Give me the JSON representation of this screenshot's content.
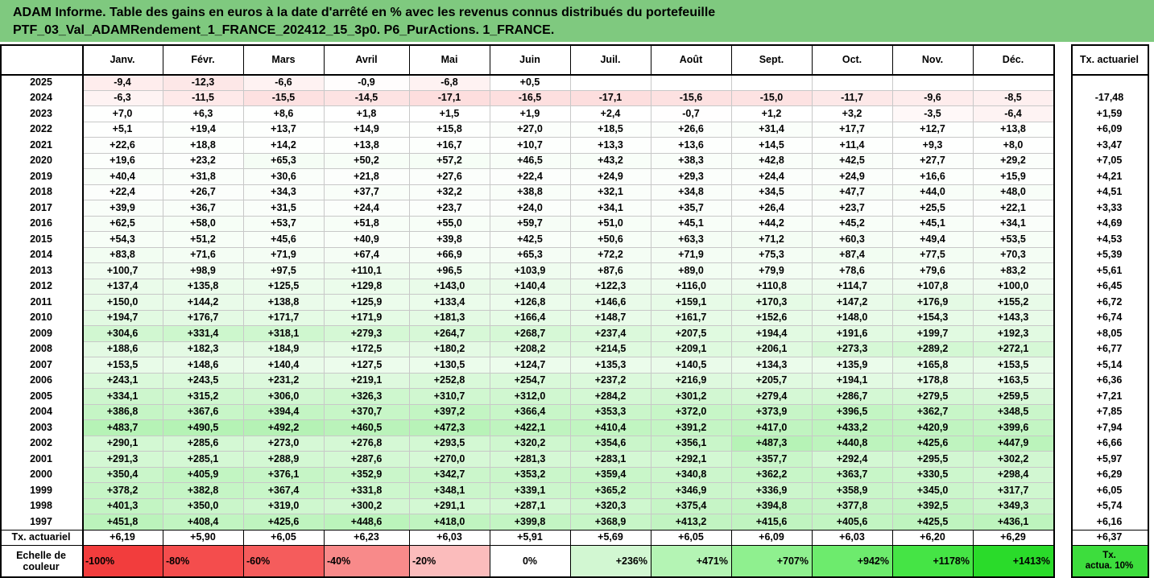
{
  "title": {
    "line1": "ADAM Informe. Table des gains en euros à la date d'arrêté en % avec les revenus connus distribués du portefeuille",
    "line2": "PTF_03_Val_ADAMRendement_1_FRANCE_202412_15_3p0. P6_PurActions. 1_FRANCE."
  },
  "months": [
    "Janv.",
    "Févr.",
    "Mars",
    "Avril",
    "Mai",
    "Juin",
    "Juil.",
    "Août",
    "Sept.",
    "Oct.",
    "Nov.",
    "Déc."
  ],
  "actuarial_header": "Tx. actuariel",
  "rows": [
    {
      "year": "2025",
      "values": [
        "-9,4",
        "-12,3",
        "-6,6",
        "-0,9",
        "-6,8",
        "+0,5",
        "",
        "",
        "",
        "",
        "",
        ""
      ],
      "rate": ""
    },
    {
      "year": "2024",
      "values": [
        "-6,3",
        "-11,5",
        "-15,5",
        "-14,5",
        "-17,1",
        "-16,5",
        "-17,1",
        "-15,6",
        "-15,0",
        "-11,7",
        "-9,6",
        "-8,5"
      ],
      "rate": "-17,48"
    },
    {
      "year": "2023",
      "values": [
        "+7,0",
        "+6,3",
        "+8,6",
        "+1,8",
        "+1,5",
        "+1,9",
        "+2,4",
        "-0,7",
        "+1,2",
        "+3,2",
        "-3,5",
        "-6,4"
      ],
      "rate": "+1,59"
    },
    {
      "year": "2022",
      "values": [
        "+5,1",
        "+19,4",
        "+13,7",
        "+14,9",
        "+15,8",
        "+27,0",
        "+18,5",
        "+26,6",
        "+31,4",
        "+17,7",
        "+12,7",
        "+13,8"
      ],
      "rate": "+6,09"
    },
    {
      "year": "2021",
      "values": [
        "+22,6",
        "+18,8",
        "+14,2",
        "+13,8",
        "+16,7",
        "+10,7",
        "+13,3",
        "+13,6",
        "+14,5",
        "+11,4",
        "+9,3",
        "+8,0"
      ],
      "rate": "+3,47"
    },
    {
      "year": "2020",
      "values": [
        "+19,6",
        "+23,2",
        "+65,3",
        "+50,2",
        "+57,2",
        "+46,5",
        "+43,2",
        "+38,3",
        "+42,8",
        "+42,5",
        "+27,7",
        "+29,2"
      ],
      "rate": "+7,05"
    },
    {
      "year": "2019",
      "values": [
        "+40,4",
        "+31,8",
        "+30,6",
        "+21,8",
        "+27,6",
        "+22,4",
        "+24,9",
        "+29,3",
        "+24,4",
        "+24,9",
        "+16,6",
        "+15,9"
      ],
      "rate": "+4,21"
    },
    {
      "year": "2018",
      "values": [
        "+22,4",
        "+26,7",
        "+34,3",
        "+37,7",
        "+32,2",
        "+38,8",
        "+32,1",
        "+34,8",
        "+34,5",
        "+47,7",
        "+44,0",
        "+48,0"
      ],
      "rate": "+4,51"
    },
    {
      "year": "2017",
      "values": [
        "+39,9",
        "+36,7",
        "+31,5",
        "+24,4",
        "+23,7",
        "+24,0",
        "+34,1",
        "+35,7",
        "+26,4",
        "+23,7",
        "+25,5",
        "+22,1"
      ],
      "rate": "+3,33"
    },
    {
      "year": "2016",
      "values": [
        "+62,5",
        "+58,0",
        "+53,7",
        "+51,8",
        "+55,0",
        "+59,7",
        "+51,0",
        "+45,1",
        "+44,2",
        "+45,2",
        "+45,1",
        "+34,1"
      ],
      "rate": "+4,69"
    },
    {
      "year": "2015",
      "values": [
        "+54,3",
        "+51,2",
        "+45,6",
        "+40,9",
        "+39,8",
        "+42,5",
        "+50,6",
        "+63,3",
        "+71,2",
        "+60,3",
        "+49,4",
        "+53,5"
      ],
      "rate": "+4,53"
    },
    {
      "year": "2014",
      "values": [
        "+83,8",
        "+71,6",
        "+71,9",
        "+67,4",
        "+66,9",
        "+65,3",
        "+72,2",
        "+71,9",
        "+75,3",
        "+87,4",
        "+77,5",
        "+70,3"
      ],
      "rate": "+5,39"
    },
    {
      "year": "2013",
      "values": [
        "+100,7",
        "+98,9",
        "+97,5",
        "+110,1",
        "+96,5",
        "+103,9",
        "+87,6",
        "+89,0",
        "+79,9",
        "+78,6",
        "+79,6",
        "+83,2"
      ],
      "rate": "+5,61"
    },
    {
      "year": "2012",
      "values": [
        "+137,4",
        "+135,8",
        "+125,5",
        "+129,8",
        "+143,0",
        "+140,4",
        "+122,3",
        "+116,0",
        "+110,8",
        "+114,7",
        "+107,8",
        "+100,0"
      ],
      "rate": "+6,45"
    },
    {
      "year": "2011",
      "values": [
        "+150,0",
        "+144,2",
        "+138,8",
        "+125,9",
        "+133,4",
        "+126,8",
        "+146,6",
        "+159,1",
        "+170,3",
        "+147,2",
        "+176,9",
        "+155,2"
      ],
      "rate": "+6,72"
    },
    {
      "year": "2010",
      "values": [
        "+194,7",
        "+176,7",
        "+171,7",
        "+171,9",
        "+181,3",
        "+166,4",
        "+148,7",
        "+161,7",
        "+152,6",
        "+148,0",
        "+154,3",
        "+143,3"
      ],
      "rate": "+6,74"
    },
    {
      "year": "2009",
      "values": [
        "+304,6",
        "+331,4",
        "+318,1",
        "+279,3",
        "+264,7",
        "+268,7",
        "+237,4",
        "+207,5",
        "+194,4",
        "+191,6",
        "+199,7",
        "+192,3"
      ],
      "rate": "+8,05"
    },
    {
      "year": "2008",
      "values": [
        "+188,6",
        "+182,3",
        "+184,9",
        "+172,5",
        "+180,2",
        "+208,2",
        "+214,5",
        "+209,1",
        "+206,1",
        "+273,3",
        "+289,2",
        "+272,1"
      ],
      "rate": "+6,77"
    },
    {
      "year": "2007",
      "values": [
        "+153,5",
        "+148,6",
        "+140,4",
        "+127,5",
        "+130,5",
        "+124,7",
        "+135,3",
        "+140,5",
        "+134,3",
        "+135,9",
        "+165,8",
        "+153,5"
      ],
      "rate": "+5,14"
    },
    {
      "year": "2006",
      "values": [
        "+243,1",
        "+243,5",
        "+231,2",
        "+219,1",
        "+252,8",
        "+254,7",
        "+237,2",
        "+216,9",
        "+205,7",
        "+194,1",
        "+178,8",
        "+163,5"
      ],
      "rate": "+6,36"
    },
    {
      "year": "2005",
      "values": [
        "+334,1",
        "+315,2",
        "+306,0",
        "+326,3",
        "+310,7",
        "+312,0",
        "+284,2",
        "+301,2",
        "+279,4",
        "+286,7",
        "+279,5",
        "+259,5"
      ],
      "rate": "+7,21"
    },
    {
      "year": "2004",
      "values": [
        "+386,8",
        "+367,6",
        "+394,4",
        "+370,7",
        "+397,2",
        "+366,4",
        "+353,3",
        "+372,0",
        "+373,9",
        "+396,5",
        "+362,7",
        "+348,5"
      ],
      "rate": "+7,85"
    },
    {
      "year": "2003",
      "values": [
        "+483,7",
        "+490,5",
        "+492,2",
        "+460,5",
        "+472,3",
        "+422,1",
        "+410,4",
        "+391,2",
        "+417,0",
        "+433,2",
        "+420,9",
        "+399,6"
      ],
      "rate": "+7,94"
    },
    {
      "year": "2002",
      "values": [
        "+290,1",
        "+285,6",
        "+273,0",
        "+276,8",
        "+293,5",
        "+320,2",
        "+354,6",
        "+356,1",
        "+487,3",
        "+440,8",
        "+425,6",
        "+447,9"
      ],
      "rate": "+6,66"
    },
    {
      "year": "2001",
      "values": [
        "+291,3",
        "+285,1",
        "+288,9",
        "+287,6",
        "+270,0",
        "+281,3",
        "+283,1",
        "+292,1",
        "+357,7",
        "+292,4",
        "+295,5",
        "+302,2"
      ],
      "rate": "+5,97"
    },
    {
      "year": "2000",
      "values": [
        "+350,4",
        "+405,9",
        "+376,1",
        "+352,9",
        "+342,7",
        "+353,2",
        "+359,4",
        "+340,8",
        "+362,2",
        "+363,7",
        "+330,5",
        "+298,4"
      ],
      "rate": "+6,29"
    },
    {
      "year": "1999",
      "values": [
        "+378,2",
        "+382,8",
        "+367,4",
        "+331,8",
        "+348,1",
        "+339,1",
        "+365,2",
        "+346,9",
        "+336,9",
        "+358,9",
        "+345,0",
        "+317,7"
      ],
      "rate": "+6,05"
    },
    {
      "year": "1998",
      "values": [
        "+401,3",
        "+350,0",
        "+319,0",
        "+300,2",
        "+291,1",
        "+287,1",
        "+320,3",
        "+375,4",
        "+394,8",
        "+377,8",
        "+392,5",
        "+349,3"
      ],
      "rate": "+5,74"
    },
    {
      "year": "1997",
      "values": [
        "+451,8",
        "+408,4",
        "+425,6",
        "+448,6",
        "+418,0",
        "+399,8",
        "+368,9",
        "+413,2",
        "+415,6",
        "+405,6",
        "+425,5",
        "+436,1"
      ],
      "rate": "+6,16"
    }
  ],
  "footer": {
    "label": "Tx. actuariel",
    "values": [
      "+6,19",
      "+5,90",
      "+6,05",
      "+6,23",
      "+6,03",
      "+5,91",
      "+5,69",
      "+6,05",
      "+6,09",
      "+6,03",
      "+6,20",
      "+6,29"
    ],
    "rate": "+6,37"
  },
  "legend": {
    "label_line1": "Echelle de",
    "label_line2": "couleur",
    "steps": [
      {
        "label": "-100%",
        "color": "#f23d3d"
      },
      {
        "label": "-80%",
        "color": "#f44d4d"
      },
      {
        "label": "-60%",
        "color": "#f55c5c"
      },
      {
        "label": "-40%",
        "color": "#f88a8a"
      },
      {
        "label": "-20%",
        "color": "#fbbcbc"
      },
      {
        "label": "0%",
        "color": "#ffffff"
      },
      {
        "label": "+236%",
        "color": "#d2f7d2"
      },
      {
        "label": "+471%",
        "color": "#b4f4b4"
      },
      {
        "label": "+707%",
        "color": "#8ff08f"
      },
      {
        "label": "+942%",
        "color": "#6deb6d"
      },
      {
        "label": "+1178%",
        "color": "#45e445"
      },
      {
        "label": "+1413%",
        "color": "#2adb2a"
      }
    ],
    "rate_label_line1": "Tx.",
    "rate_label_line2": "actua. 10%",
    "rate_color": "#3ddd3d"
  }
}
